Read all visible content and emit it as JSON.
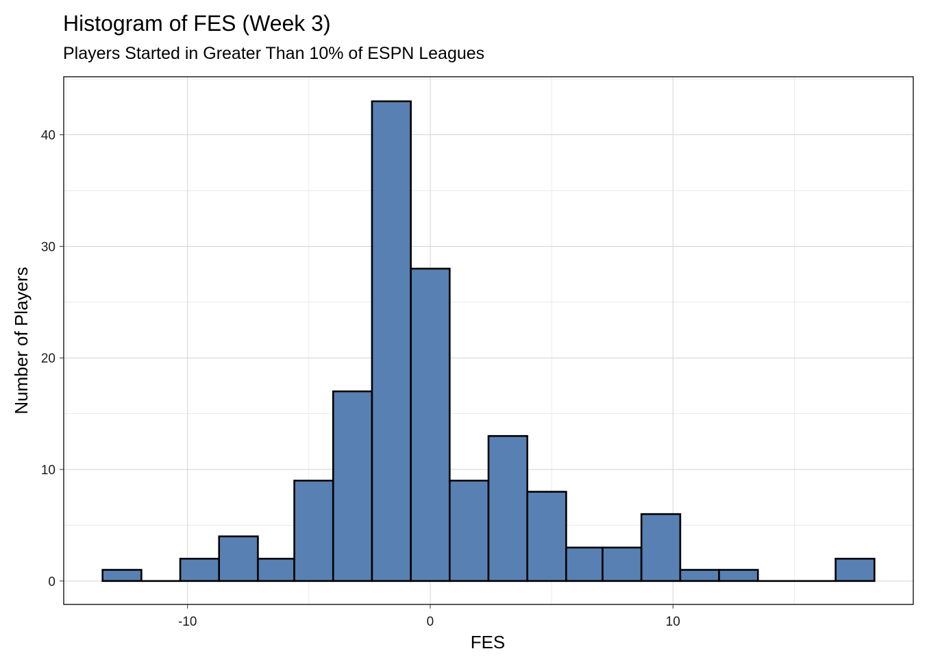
{
  "chart_data": {
    "type": "bar",
    "title": "Histogram of FES (Week 3)",
    "subtitle": "Players Started in Greater Than 10% of ESPN Leagues",
    "xlabel": "FES",
    "ylabel": "Number of Players",
    "bins": [
      {
        "x0": -13.5,
        "x1": -11.9,
        "count": 1
      },
      {
        "x0": -11.9,
        "x1": -10.3,
        "count": 0
      },
      {
        "x0": -10.3,
        "x1": -8.7,
        "count": 2
      },
      {
        "x0": -8.7,
        "x1": -7.1,
        "count": 4
      },
      {
        "x0": -7.1,
        "x1": -5.6,
        "count": 2
      },
      {
        "x0": -5.6,
        "x1": -4.0,
        "count": 9
      },
      {
        "x0": -4.0,
        "x1": -2.4,
        "count": 17
      },
      {
        "x0": -2.4,
        "x1": -0.8,
        "count": 43
      },
      {
        "x0": -0.8,
        "x1": 0.8,
        "count": 28
      },
      {
        "x0": 0.8,
        "x1": 2.4,
        "count": 9
      },
      {
        "x0": 2.4,
        "x1": 4.0,
        "count": 13
      },
      {
        "x0": 4.0,
        "x1": 5.6,
        "count": 8
      },
      {
        "x0": 5.6,
        "x1": 7.1,
        "count": 3
      },
      {
        "x0": 7.1,
        "x1": 8.7,
        "count": 3
      },
      {
        "x0": 8.7,
        "x1": 10.3,
        "count": 6
      },
      {
        "x0": 10.3,
        "x1": 11.9,
        "count": 1
      },
      {
        "x0": 11.9,
        "x1": 13.5,
        "count": 1
      },
      {
        "x0": 13.5,
        "x1": 15.1,
        "count": 0
      },
      {
        "x0": 15.1,
        "x1": 16.7,
        "count": 0
      },
      {
        "x0": 16.7,
        "x1": 18.3,
        "count": 2
      }
    ],
    "xlim": [
      -15.1,
      19.9
    ],
    "ylim": [
      -2.1,
      45.2
    ],
    "xticks": [
      -10,
      0,
      10
    ],
    "xtick_labels": [
      "-10",
      "0",
      "10"
    ],
    "yticks": [
      0,
      10,
      20,
      30,
      40
    ],
    "ytick_labels": [
      "0",
      "10",
      "20",
      "30",
      "40"
    ],
    "grid": true,
    "colors": {
      "bar_fill": "#5880b2",
      "bar_stroke": "#000000",
      "grid": "#d3d3d3",
      "panel_border": "#000000"
    }
  }
}
